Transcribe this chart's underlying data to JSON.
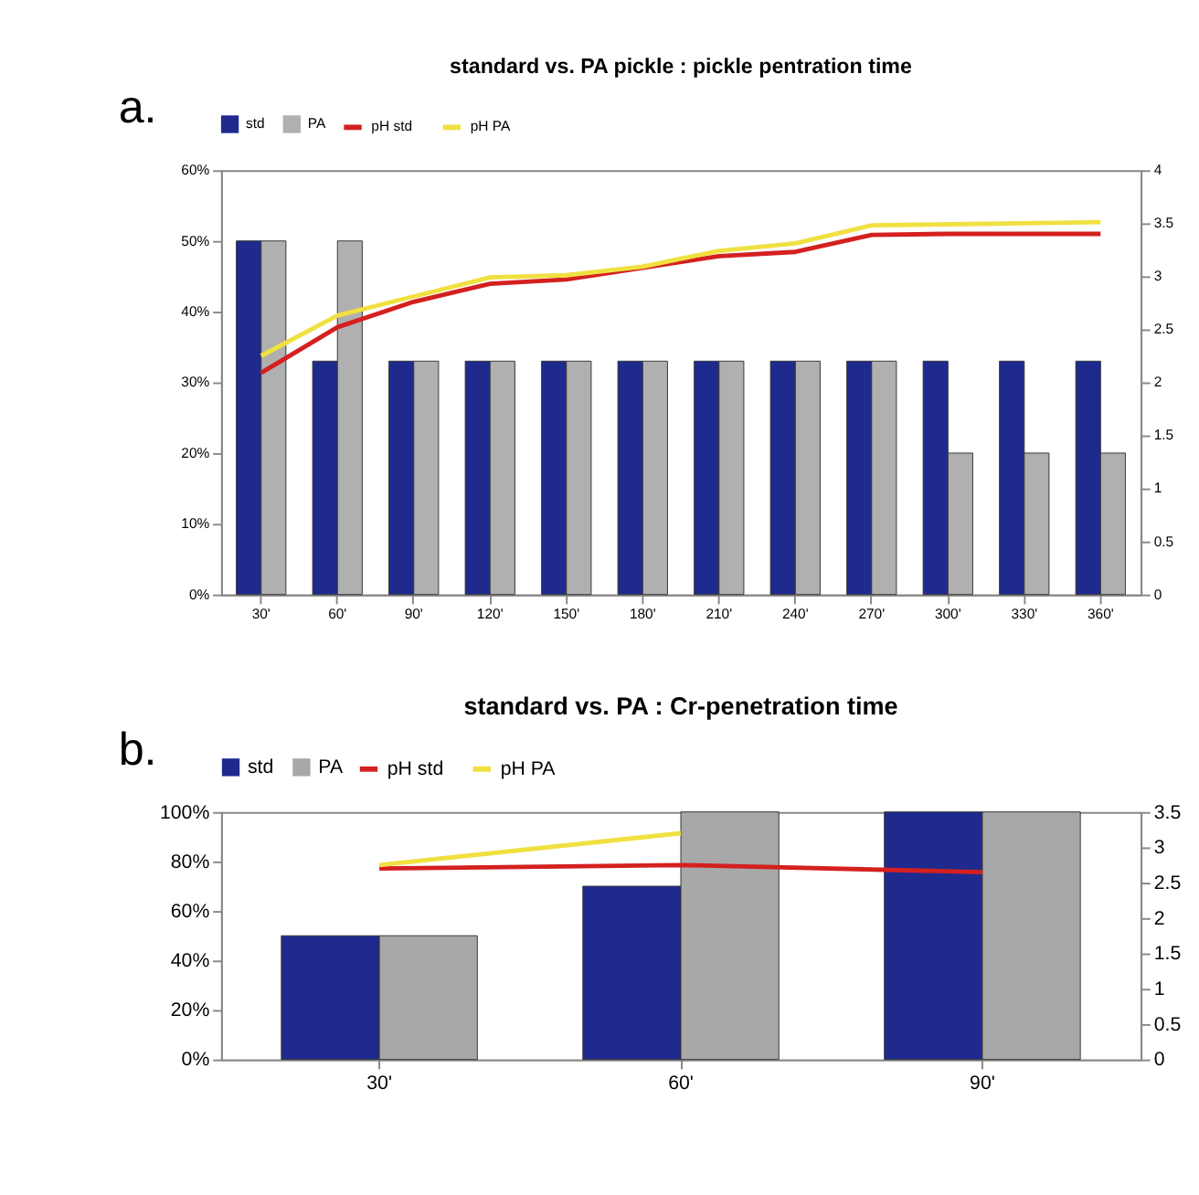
{
  "chart_data": [
    {
      "type": "bar",
      "title": "standard  vs.  PA pickle :  pickle  pentration time",
      "annotations": [
        "a."
      ],
      "legend": "top",
      "grid": false,
      "categories": [
        "30'",
        "60'",
        "90'",
        "120'",
        "150'",
        "180'",
        "210'",
        "240'",
        "270'",
        "300'",
        "330'",
        "360'"
      ],
      "ylim": [
        0,
        60
      ],
      "yticks": [
        {
          "value": 0,
          "label": "0%"
        },
        {
          "value": 10,
          "label": "10%"
        },
        {
          "value": 20,
          "label": "20%"
        },
        {
          "value": 30,
          "label": "30%"
        },
        {
          "value": 40,
          "label": "40%"
        },
        {
          "value": 50,
          "label": "50%"
        },
        {
          "value": 60,
          "label": "60%"
        }
      ],
      "y2lim": [
        0,
        4
      ],
      "y2ticks": [
        0,
        0.5,
        1,
        1.5,
        2,
        2.5,
        3,
        3.5,
        4
      ],
      "series": [
        {
          "name": "std",
          "color": "#1f2a8f",
          "values": [
            50,
            33,
            33,
            33,
            33,
            33,
            33,
            33,
            33,
            33,
            33,
            33
          ]
        },
        {
          "name": "PA",
          "color": "#b0b0b0",
          "values": [
            50,
            50,
            33,
            33,
            33,
            33,
            33,
            33,
            33,
            20,
            20,
            20
          ]
        },
        {
          "name": "pH std",
          "color": "#d42020",
          "type": "line",
          "axis": "y2",
          "values": [
            2.09,
            2.52,
            2.76,
            2.93,
            2.97,
            3.08,
            3.19,
            3.23,
            3.39,
            3.4,
            3.4,
            3.4
          ]
        },
        {
          "name": "pH PA",
          "color": "#f0e040",
          "type": "line",
          "axis": "y2",
          "values": [
            2.25,
            2.63,
            2.81,
            2.99,
            3.01,
            3.09,
            3.24,
            3.31,
            3.48,
            3.49,
            3.5,
            3.51
          ]
        }
      ]
    },
    {
      "type": "bar",
      "title": "standard vs. PA : Cr-penetration time",
      "annotations": [
        "b."
      ],
      "legend": "top",
      "grid": false,
      "categories": [
        "30'",
        "60'",
        "90'"
      ],
      "ylim": [
        0,
        100
      ],
      "yticks": [
        {
          "value": 0,
          "label": "0%"
        },
        {
          "value": 20,
          "label": "20%"
        },
        {
          "value": 40,
          "label": "40%"
        },
        {
          "value": 60,
          "label": "60%"
        },
        {
          "value": 80,
          "label": "80%"
        },
        {
          "value": 100,
          "label": "100%"
        }
      ],
      "y2lim": [
        0,
        3.5
      ],
      "y2ticks": [
        0,
        0.5,
        1,
        1.5,
        2,
        2.5,
        3,
        3.5
      ],
      "series": [
        {
          "name": "std",
          "color": "#1f2a8f",
          "values": [
            50,
            70,
            100
          ]
        },
        {
          "name": "PA",
          "color": "#a8a8a8",
          "values": [
            50,
            100,
            100
          ]
        },
        {
          "name": "pH std",
          "color": "#d42020",
          "type": "line",
          "axis": "y2",
          "values": [
            2.7,
            2.75,
            2.65
          ]
        },
        {
          "name": "pH PA",
          "color": "#f0e040",
          "type": "line",
          "axis": "y2",
          "values": [
            2.75,
            3.2,
            null
          ]
        }
      ]
    }
  ]
}
